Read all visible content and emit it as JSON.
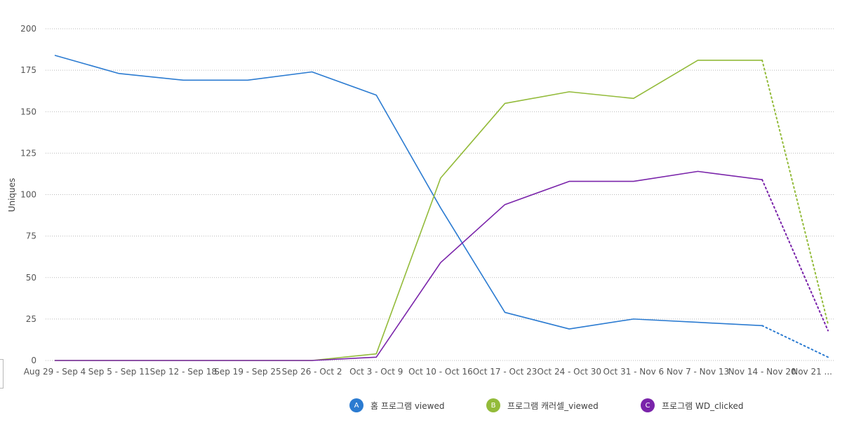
{
  "chart_data": {
    "type": "line",
    "ylabel": "Uniques",
    "xlabel": "",
    "ylim": [
      0,
      200
    ],
    "yticks": [
      0,
      25,
      50,
      75,
      100,
      125,
      150,
      175,
      200
    ],
    "grid": true,
    "legend_position": "bottom",
    "categories": [
      "Aug 29 - Sep 4",
      "Sep 5 - Sep 11",
      "Sep 12 - Sep 18",
      "Sep 19 - Sep 25",
      "Sep 26 - Oct 2",
      "Oct 3 - Oct 9",
      "Oct 10 - Oct 16",
      "Oct 17 - Oct 23",
      "Oct 24 - Oct 30",
      "Oct 31 - Nov 6",
      "Nov 7 - Nov 13",
      "Nov 14 - Nov 20",
      "Nov 21 ..."
    ],
    "incomplete_from_index": 11,
    "series": [
      {
        "badge": "A",
        "name": "홈 프로그램 viewed",
        "color": "#2b7bd1",
        "values": [
          184,
          173,
          169,
          169,
          174,
          160,
          92,
          29,
          19,
          25,
          23,
          21,
          2
        ]
      },
      {
        "badge": "B",
        "name": "프로그램 캐러셀_viewed",
        "color": "#93bb3a",
        "values": [
          0,
          0,
          0,
          0,
          0,
          4,
          110,
          155,
          162,
          158,
          181,
          181,
          22
        ]
      },
      {
        "badge": "C",
        "name": "프로그램 WD_clicked",
        "color": "#7a24aa",
        "values": [
          0,
          0,
          0,
          0,
          0,
          2,
          59,
          94,
          108,
          108,
          114,
          109,
          18
        ]
      }
    ]
  }
}
